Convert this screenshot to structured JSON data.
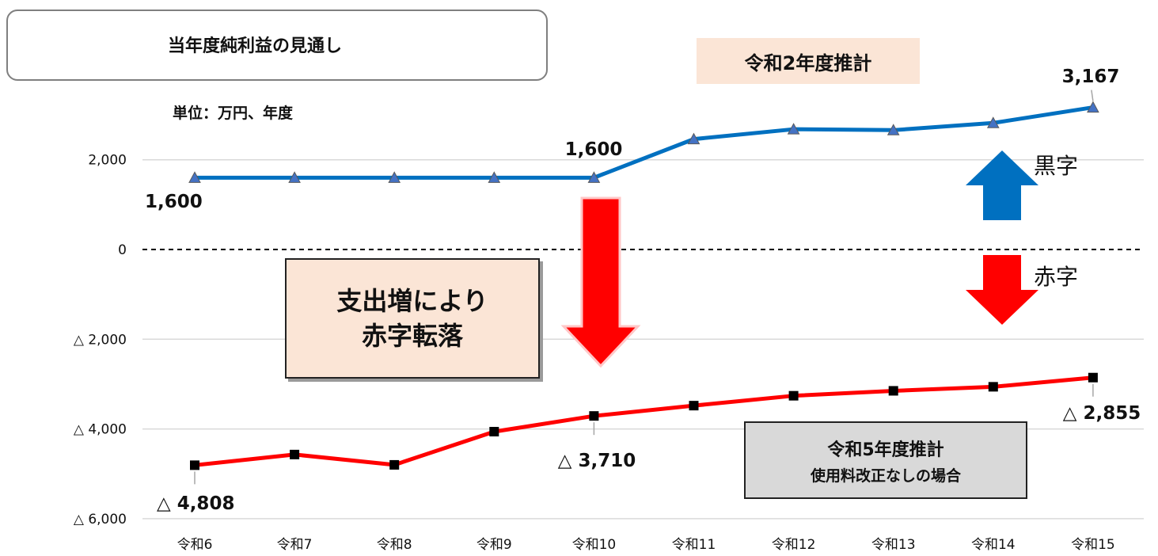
{
  "title": "当年度純利益の見通し",
  "unit": "単位：万円、年度",
  "estimate_2": "令和2年度推計",
  "callout": [
    "支出増により",
    "赤字転落"
  ],
  "estimate_5": {
    "line1": "令和5年度推計",
    "line2": "使用料改正なしの場合"
  },
  "kuroji_label": "黒字",
  "akaji_label": "赤字",
  "colors": {
    "blue_line": "#0070c0",
    "red_line": "#ff0000",
    "blue_arrow": "#0070c0",
    "red_arrow": "#ff0000"
  },
  "chart_data": {
    "type": "line",
    "categories": [
      "令和6",
      "令和7",
      "令和8",
      "令和9",
      "令和10",
      "令和11",
      "令和12",
      "令和13",
      "令和14",
      "令和15"
    ],
    "ylim": [
      -6000,
      3200
    ],
    "yticks": [
      2000,
      0,
      -2000,
      -4000,
      -6000
    ],
    "ytick_labels": [
      "2,000",
      "0",
      "△ 2,000",
      "△ 4,000",
      "△ 6,000"
    ],
    "series": [
      {
        "values": [
          1600,
          1600,
          1600,
          1600,
          1600,
          2460,
          2680,
          2660,
          2820,
          3167
        ],
        "marker": "triangle",
        "labels": {
          "0": "1,600",
          "4": "1,600",
          "9": "3,167"
        }
      },
      {
        "values": [
          -4808,
          -4570,
          -4800,
          -4060,
          -3710,
          -3480,
          -3260,
          -3150,
          -3060,
          -2855
        ],
        "marker": "square",
        "labels": {
          "0": "△ 4,808",
          "4": "△ 3,710",
          "9": "△ 2,855"
        }
      }
    ]
  }
}
